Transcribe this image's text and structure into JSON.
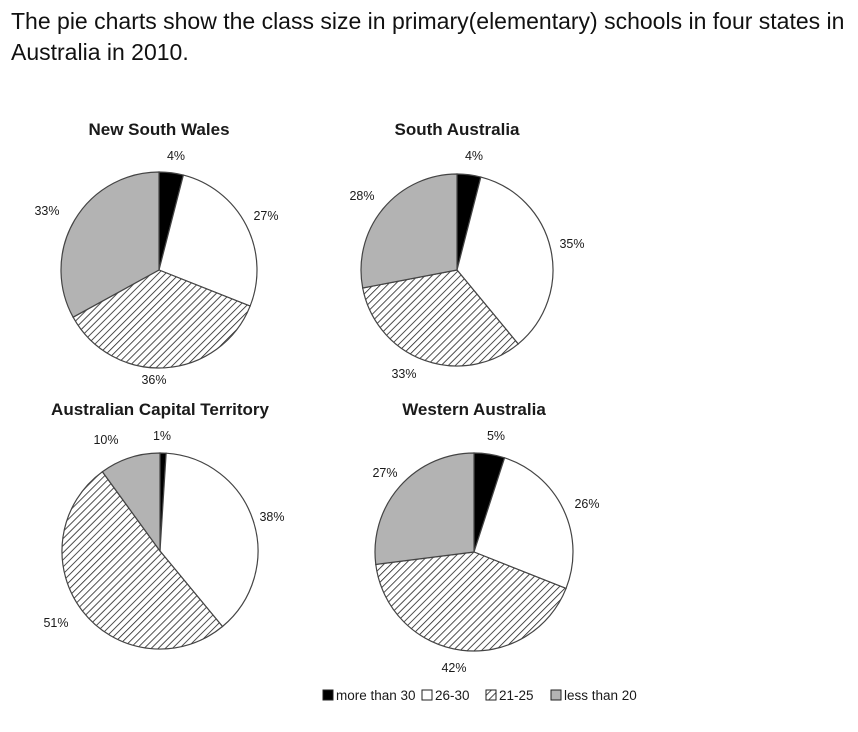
{
  "heading": "The pie charts show the class size in primary(elementary) schools in four states in Australia in 2010.",
  "colors": {
    "more_than_30": "#000000",
    "26_30": "#ffffff",
    "21_25": "hatch",
    "less_than_20": "#b3b3b3",
    "outline": "#444444"
  },
  "chart_data": [
    {
      "type": "pie",
      "title": "New South Wales",
      "categories": [
        "more than 30",
        "26-30",
        "21-25",
        "less than 20"
      ],
      "values": [
        4,
        27,
        36,
        33
      ],
      "labels": [
        "4%",
        "27%",
        "36%",
        "33%"
      ]
    },
    {
      "type": "pie",
      "title": "South Australia",
      "categories": [
        "more than 30",
        "26-30",
        "21-25",
        "less than 20"
      ],
      "values": [
        4,
        35,
        33,
        28
      ],
      "labels": [
        "4%",
        "35%",
        "33%",
        "28%"
      ]
    },
    {
      "type": "pie",
      "title": "Australian Capital Territory",
      "categories": [
        "more than 30",
        "26-30",
        "21-25",
        "less than 20"
      ],
      "values": [
        1,
        38,
        51,
        10
      ],
      "labels": [
        "1%",
        "38%",
        "51%",
        "10%"
      ]
    },
    {
      "type": "pie",
      "title": "Western Australia",
      "categories": [
        "more than 30",
        "26-30",
        "21-25",
        "less than 20"
      ],
      "values": [
        5,
        26,
        42,
        27
      ],
      "labels": [
        "5%",
        "26%",
        "42%",
        "27%"
      ]
    }
  ],
  "legend": [
    "more than 30",
    "26-30",
    "21-25",
    "less than 20"
  ]
}
